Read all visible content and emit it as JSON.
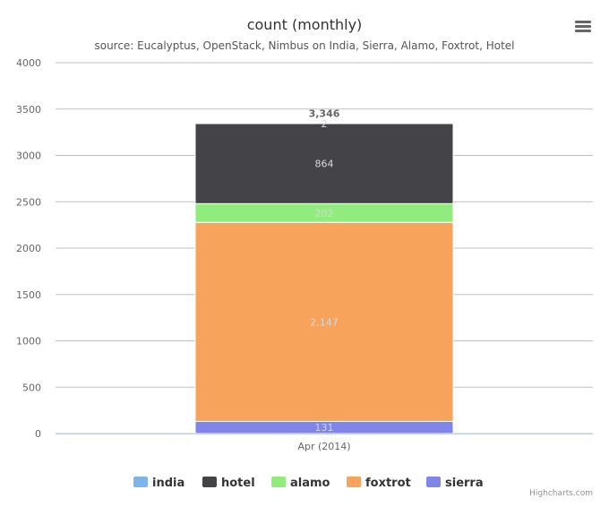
{
  "chart_data": {
    "type": "bar",
    "stacked": true,
    "title": "count (monthly)",
    "subtitle": "source: Eucalyptus, OpenStack, Nimbus on India, Sierra, Alamo, Foxtrot, Hotel",
    "categories": [
      "Apr (2014)"
    ],
    "ylim": [
      0,
      4000
    ],
    "yticks": [
      0,
      500,
      1000,
      1500,
      2000,
      2500,
      3000,
      3500,
      4000
    ],
    "grid": true,
    "legend_position": "bottom",
    "stack_order": [
      "sierra",
      "foxtrot",
      "alamo",
      "hotel",
      "india"
    ],
    "series": [
      {
        "name": "india",
        "values": [
          2
        ],
        "label": "2",
        "color": "#7cb5ec"
      },
      {
        "name": "hotel",
        "values": [
          864
        ],
        "label": "864",
        "color": "#434348"
      },
      {
        "name": "alamo",
        "values": [
          202
        ],
        "label": "202",
        "color": "#90ed7d"
      },
      {
        "name": "foxtrot",
        "values": [
          2147
        ],
        "label": "2,147",
        "color": "#f7a35c"
      },
      {
        "name": "sierra",
        "values": [
          131
        ],
        "label": "131",
        "color": "#8085e9"
      }
    ],
    "totals": [
      "3,346"
    ]
  },
  "credits": "Highcharts.com",
  "menu_icon": "hamburger-menu-icon"
}
